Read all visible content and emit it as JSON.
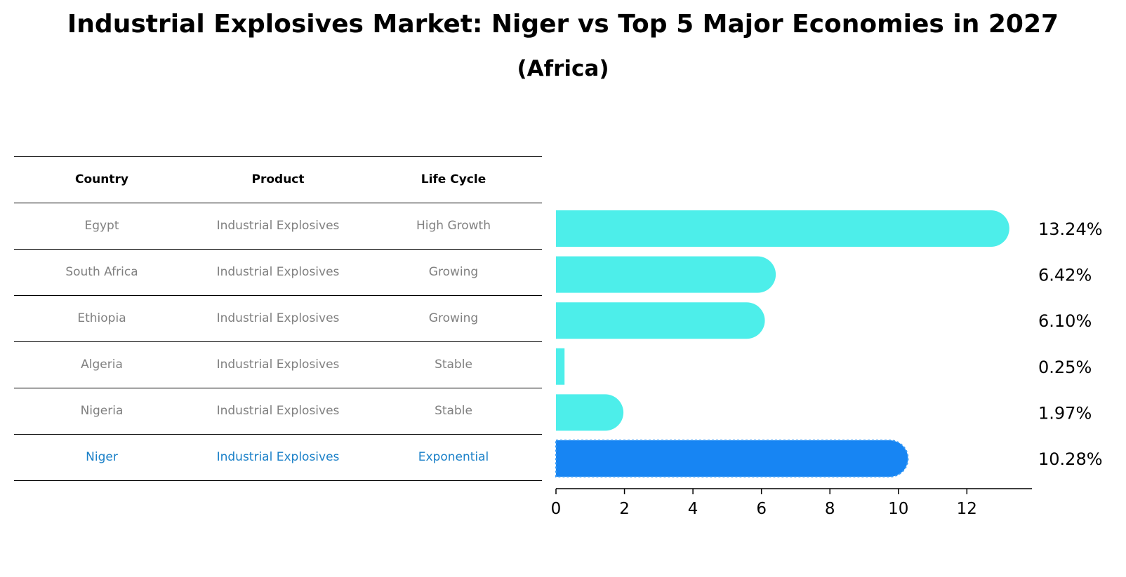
{
  "title": "Industrial Explosives Market: Niger vs Top 5 Major Economies in 2027",
  "subtitle": "(Africa)",
  "colors": {
    "bar": "#4deeea",
    "highlight": "#1785f3",
    "text_muted": "#808080",
    "text_highlight": "#1a80c8"
  },
  "table": {
    "headers": [
      "Country",
      "Product",
      "Life Cycle"
    ],
    "rows": [
      {
        "country": "Egypt",
        "product": "Industrial Explosives",
        "life_cycle": "High Growth",
        "highlight": false
      },
      {
        "country": "South Africa",
        "product": "Industrial Explosives",
        "life_cycle": "Growing",
        "highlight": false
      },
      {
        "country": "Ethiopia",
        "product": "Industrial Explosives",
        "life_cycle": "Growing",
        "highlight": false
      },
      {
        "country": "Algeria",
        "product": "Industrial Explosives",
        "life_cycle": "Stable",
        "highlight": false
      },
      {
        "country": "Nigeria",
        "product": "Industrial Explosives",
        "life_cycle": "Stable",
        "highlight": false
      },
      {
        "country": "Niger",
        "product": "Industrial Explosives",
        "life_cycle": "Exponential",
        "highlight": true
      }
    ]
  },
  "chart_data": {
    "type": "bar",
    "orientation": "horizontal",
    "categories": [
      "Egypt",
      "South Africa",
      "Ethiopia",
      "Algeria",
      "Nigeria",
      "Niger"
    ],
    "values": [
      13.24,
      6.42,
      6.1,
      0.25,
      1.97,
      10.28
    ],
    "value_labels": [
      "13.24%",
      "6.42%",
      "6.10%",
      "0.25%",
      "1.97%",
      "10.28%"
    ],
    "highlight_category": "Niger",
    "xlim": [
      0,
      13.9
    ],
    "xticks": [
      0,
      2,
      4,
      6,
      8,
      10,
      12
    ],
    "grid": false
  }
}
